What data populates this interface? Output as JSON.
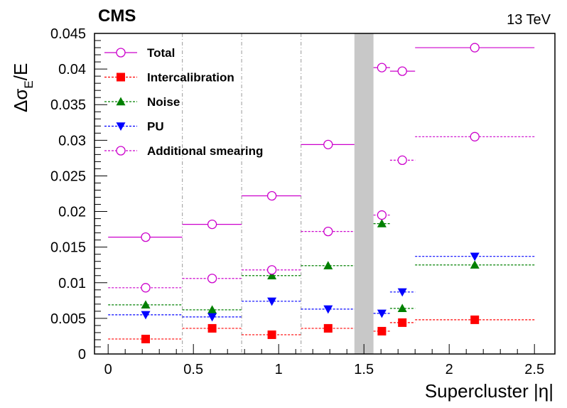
{
  "chart_data": {
    "type": "scatter",
    "experiment": "CMS",
    "energy_label": "13 TeV",
    "xlabel": "Supercluster |η|",
    "ylabel_main": "Δσ",
    "ylabel_sub": "E",
    "ylabel_tail": "/E",
    "xlim": [
      -0.08,
      2.62
    ],
    "ylim": [
      0,
      0.045
    ],
    "x_ticks": [
      "0",
      "0.5",
      "1",
      "1.5",
      "2",
      "2.5"
    ],
    "x_tick_values": [
      0,
      0.5,
      1,
      1.5,
      2,
      2.5
    ],
    "y_ticks": [
      "0",
      "0.005",
      "0.01",
      "0.015",
      "0.02",
      "0.025",
      "0.03",
      "0.035",
      "0.04",
      "0.045"
    ],
    "y_tick_values": [
      0,
      0.005,
      0.01,
      0.015,
      0.02,
      0.025,
      0.03,
      0.035,
      0.04,
      0.045
    ],
    "gap_region": [
      1.4442,
      1.556
    ],
    "boundary_lines": [
      0.435,
      0.783,
      1.131
    ],
    "bins": [
      {
        "lo": 0.0,
        "hi": 0.435,
        "center": 0.22
      },
      {
        "lo": 0.435,
        "hi": 0.783,
        "center": 0.61
      },
      {
        "lo": 0.783,
        "hi": 1.131,
        "center": 0.96
      },
      {
        "lo": 1.131,
        "hi": 1.4442,
        "center": 1.29
      },
      {
        "lo": 1.556,
        "hi": 1.653,
        "center": 1.605
      },
      {
        "lo": 1.653,
        "hi": 1.8,
        "center": 1.725
      },
      {
        "lo": 1.8,
        "hi": 2.5,
        "center": 2.15
      }
    ],
    "series": [
      {
        "name": "Total",
        "marker": "open-circle",
        "color": "#cc00cc",
        "line": "solid",
        "values": [
          0.0164,
          0.0182,
          0.0222,
          0.0294,
          0.0402,
          0.0397,
          0.043
        ]
      },
      {
        "name": "Intercalibration",
        "marker": "square",
        "color": "#ff0000",
        "line": "dotted",
        "values": [
          0.0021,
          0.0036,
          0.0027,
          0.0036,
          0.0032,
          0.0044,
          0.0048
        ]
      },
      {
        "name": "Noise",
        "marker": "triangle-up",
        "color": "#008000",
        "line": "dotted",
        "values": [
          0.0069,
          0.0062,
          0.011,
          0.0124,
          0.0183,
          0.0064,
          0.0125
        ]
      },
      {
        "name": "PU",
        "marker": "triangle-down",
        "color": "#0000ff",
        "line": "dotted",
        "values": [
          0.0055,
          0.0052,
          0.0074,
          0.0063,
          0.0057,
          0.0087,
          0.0137
        ]
      },
      {
        "name": "Additional smearing",
        "marker": "open-circle",
        "color": "#cc00cc",
        "line": "dotted",
        "values": [
          0.0093,
          0.0106,
          0.0118,
          0.0172,
          0.0195,
          0.0272,
          0.0305
        ]
      }
    ],
    "legend_position": "top-left"
  }
}
